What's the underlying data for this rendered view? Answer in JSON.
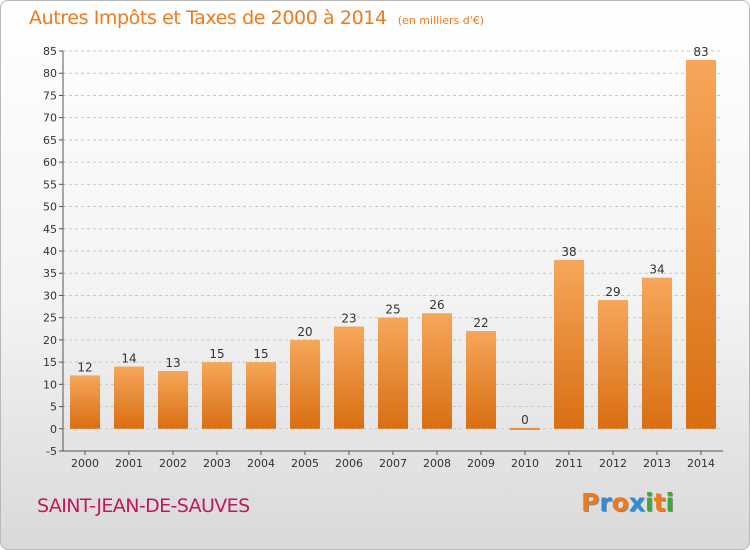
{
  "header": {
    "title": "Autres Impôts et Taxes de 2000 à 2014",
    "subtitle": "(en milliers d'€)"
  },
  "footer": {
    "commune": "SAINT-JEAN-DE-SAUVES",
    "logo_text": "Proxiti",
    "logo_colors": [
      "#f07a1a",
      "#2e8bd8",
      "#f07a1a",
      "#2e8bd8",
      "#3aaa35",
      "#f07a1a",
      "#3aaa35"
    ]
  },
  "colors": {
    "bar_top": "#f6a75a",
    "bar_bottom": "#d96e12",
    "grid": "#c7c7c7",
    "axis_text": "#333333",
    "label_text": "#333333"
  },
  "chart_data": {
    "type": "bar",
    "categories": [
      "2000",
      "2001",
      "2002",
      "2003",
      "2004",
      "2005",
      "2006",
      "2007",
      "2008",
      "2009",
      "2010",
      "2011",
      "2012",
      "2013",
      "2014"
    ],
    "values": [
      12,
      14,
      13,
      15,
      15,
      20,
      23,
      25,
      26,
      22,
      0,
      38,
      29,
      34,
      83
    ],
    "ylim": [
      -5,
      85
    ],
    "yticks": [
      -5,
      0,
      5,
      10,
      15,
      20,
      25,
      30,
      35,
      40,
      45,
      50,
      55,
      60,
      65,
      70,
      75,
      80,
      85
    ],
    "grid": true
  }
}
